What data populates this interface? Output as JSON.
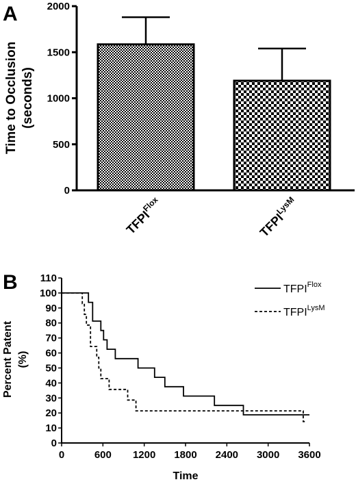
{
  "chart_data": [
    {
      "panel": "A",
      "type": "bar",
      "ylabel_line1": "Time to Occlusion",
      "ylabel_line2": "(seconds)",
      "ylim": [
        0,
        2000
      ],
      "yticks": [
        0,
        500,
        1000,
        1500,
        2000
      ],
      "categories": [
        {
          "base": "TFPI",
          "sup": "Flox"
        },
        {
          "base": "TFPI",
          "sup": "LysM"
        }
      ],
      "values": [
        1585,
        1190
      ],
      "error_upper": [
        1880,
        1540
      ],
      "patterns": [
        "fine-checker",
        "coarse-checker"
      ]
    },
    {
      "panel": "B",
      "type": "line",
      "xlabel": "Time",
      "ylabel_line1": "Percent Patent",
      "ylabel_line2": "(%)",
      "xlim": [
        0,
        3600
      ],
      "ylim": [
        0,
        110
      ],
      "xticks": [
        0,
        600,
        1200,
        1800,
        2400,
        3000,
        3600
      ],
      "yticks": [
        0,
        10,
        20,
        30,
        40,
        50,
        60,
        70,
        80,
        90,
        100,
        110
      ],
      "legend_position": "top-right",
      "series": [
        {
          "name_base": "TFPI",
          "name_sup": "Flox",
          "style": "solid",
          "steps": [
            [
              0,
              100
            ],
            [
              390,
              100
            ],
            [
              390,
              93.75
            ],
            [
              450,
              93.75
            ],
            [
              450,
              81.25
            ],
            [
              570,
              81.25
            ],
            [
              570,
              75
            ],
            [
              610,
              75
            ],
            [
              610,
              68.75
            ],
            [
              660,
              68.75
            ],
            [
              660,
              62.5
            ],
            [
              780,
              62.5
            ],
            [
              780,
              56.25
            ],
            [
              1110,
              56.25
            ],
            [
              1110,
              50
            ],
            [
              1350,
              50
            ],
            [
              1350,
              43.75
            ],
            [
              1500,
              43.75
            ],
            [
              1500,
              37.5
            ],
            [
              1770,
              37.5
            ],
            [
              1770,
              31.25
            ],
            [
              2220,
              31.25
            ],
            [
              2220,
              25
            ],
            [
              2640,
              25
            ],
            [
              2640,
              18.75
            ],
            [
              3600,
              18.75
            ]
          ]
        },
        {
          "name_base": "TFPI",
          "name_sup": "LysM",
          "style": "dashed",
          "steps": [
            [
              0,
              100
            ],
            [
              300,
              100
            ],
            [
              300,
              92.9
            ],
            [
              330,
              92.9
            ],
            [
              330,
              85.7
            ],
            [
              360,
              85.7
            ],
            [
              360,
              78.6
            ],
            [
              420,
              78.6
            ],
            [
              420,
              64.3
            ],
            [
              510,
              64.3
            ],
            [
              510,
              57.1
            ],
            [
              540,
              57.1
            ],
            [
              540,
              50
            ],
            [
              570,
              50
            ],
            [
              570,
              42.9
            ],
            [
              690,
              42.9
            ],
            [
              690,
              35.7
            ],
            [
              960,
              35.7
            ],
            [
              960,
              28.6
            ],
            [
              1080,
              28.6
            ],
            [
              1080,
              21.4
            ],
            [
              3510,
              21.4
            ],
            [
              3510,
              14.3
            ],
            [
              3560,
              14.3
            ]
          ]
        }
      ]
    }
  ]
}
